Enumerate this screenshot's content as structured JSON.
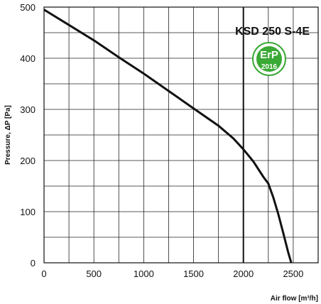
{
  "chart_data": {
    "type": "line",
    "title": "KSD 250 S-4E",
    "xlabel": "Air flow [m³/h]",
    "ylabel": "Pressure, ΔP [Pa]",
    "xlim": [
      0,
      2750
    ],
    "ylim": [
      0,
      500
    ],
    "xticks": [
      0,
      500,
      1000,
      1500,
      2000,
      2500
    ],
    "yticks": [
      0,
      100,
      200,
      300,
      400,
      500
    ],
    "grid": true,
    "series": [
      {
        "x": [
          0,
          250,
          500,
          750,
          1000,
          1250,
          1500,
          1750,
          1900,
          2000,
          2100,
          2200,
          2250,
          2300,
          2350,
          2400,
          2450,
          2480
        ],
        "y": [
          495,
          465,
          435,
          402,
          370,
          336,
          302,
          268,
          243,
          222,
          198,
          168,
          155,
          128,
          95,
          58,
          20,
          0
        ]
      }
    ],
    "annotations": {
      "vertical_line_x": 2000
    },
    "badge": {
      "text": "ErP",
      "year": "2016",
      "color": "#3aa935"
    }
  }
}
